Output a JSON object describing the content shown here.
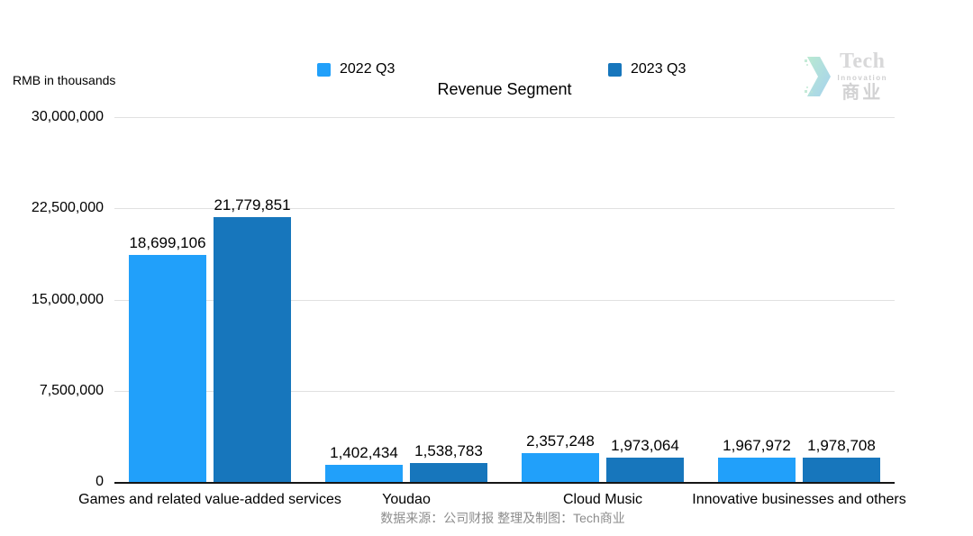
{
  "logo": {
    "brand": "Tech",
    "tagline": "Innovation",
    "cn": "商业"
  },
  "footer": {
    "source": "数据来源：公司财报 整理及制图：Tech商业"
  },
  "chart_data": {
    "type": "bar",
    "title": "Revenue Segment",
    "ylabel": "RMB in thousands",
    "categories": [
      "Games and related value-added services",
      "Youdao",
      "Cloud Music",
      "Innovative businesses and others"
    ],
    "series": [
      {
        "name": "2022 Q3",
        "color": "#21A0FA",
        "values": [
          18699106,
          1402434,
          2357248,
          1967972
        ]
      },
      {
        "name": "2023 Q3",
        "color": "#1776BC",
        "values": [
          21779851,
          1538783,
          1973064,
          1978708
        ]
      }
    ],
    "ylim": [
      0,
      30000000
    ],
    "yticks": [
      30000000,
      22500000,
      15000000,
      7500000,
      0
    ],
    "grid": "horizontal",
    "gridline_color": "#e1e1e1",
    "axis_line_color": "#161616",
    "legend_position": "top",
    "value_labels_shown": true
  }
}
